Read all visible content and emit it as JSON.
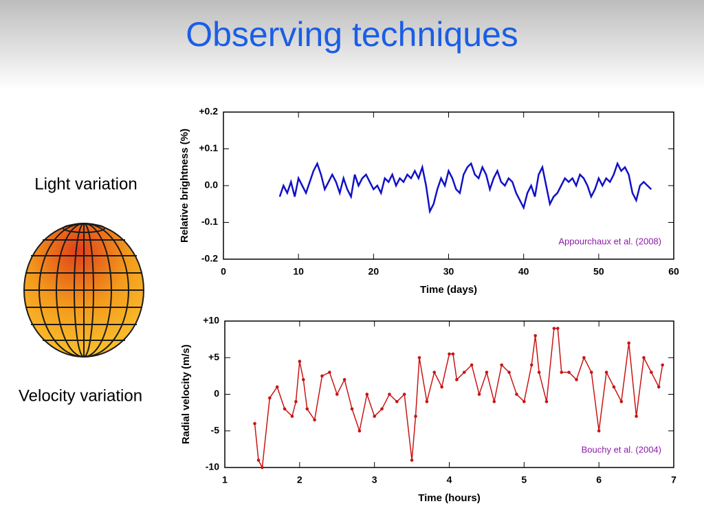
{
  "title": "Observing techniques",
  "labels": {
    "light": "Light variation",
    "velocity": "Velocity variation"
  },
  "chart_data": [
    {
      "type": "line",
      "xlabel": "Time (days)",
      "ylabel": "Relative brightness (%)",
      "annotation": "Appourchaux et al. (2008)",
      "color": "#1010c8",
      "markers": false,
      "xlim": [
        0,
        60
      ],
      "xticks": [
        0,
        10,
        20,
        30,
        40,
        50,
        60
      ],
      "ylim": [
        -0.2,
        0.2
      ],
      "yticks": [
        {
          "value": 0.2,
          "label": "+0.2"
        },
        {
          "value": 0.1,
          "label": "+0.1"
        },
        {
          "value": 0,
          "label": "0.0"
        },
        -0.1,
        -0.2
      ],
      "x": [
        7.5,
        8,
        8.5,
        9,
        9.5,
        10,
        10.5,
        11,
        11.5,
        12,
        12.5,
        13,
        13.5,
        14,
        14.5,
        15,
        15.5,
        16,
        16.5,
        17,
        17.5,
        18,
        18.5,
        19,
        19.5,
        20,
        20.5,
        21,
        21.5,
        22,
        22.5,
        23,
        23.5,
        24,
        24.5,
        25,
        25.5,
        26,
        26.5,
        27,
        27.5,
        28,
        28.5,
        29,
        29.5,
        30,
        30.5,
        31,
        31.5,
        32,
        32.5,
        33,
        33.5,
        34,
        34.5,
        35,
        35.5,
        36,
        36.5,
        37,
        37.5,
        38,
        38.5,
        39,
        39.5,
        40,
        40.5,
        41,
        41.5,
        42,
        42.5,
        43,
        43.5,
        44,
        44.5,
        45,
        45.5,
        46,
        46.5,
        47,
        47.5,
        48,
        48.5,
        49,
        49.5,
        50,
        50.5,
        51,
        51.5,
        52,
        52.5,
        53,
        53.5,
        54,
        54.5,
        55,
        55.5,
        56,
        56.5,
        57
      ],
      "values": [
        -0.03,
        0,
        -0.02,
        0.01,
        -0.03,
        0.02,
        0,
        -0.02,
        0.01,
        0.04,
        0.06,
        0.03,
        -0.01,
        0.01,
        0.03,
        0.01,
        -0.02,
        0.02,
        -0.01,
        -0.03,
        0.03,
        0,
        0.02,
        0.03,
        0.01,
        -0.01,
        0,
        -0.02,
        0.02,
        0.01,
        0.03,
        0,
        0.02,
        0.01,
        0.03,
        0.02,
        0.04,
        0.02,
        0.05,
        0,
        -0.07,
        -0.05,
        -0.01,
        0.02,
        0,
        0.04,
        0.02,
        -0.01,
        -0.02,
        0.03,
        0.05,
        0.06,
        0.03,
        0.02,
        0.05,
        0.03,
        -0.01,
        0.02,
        0.04,
        0.01,
        0,
        0.02,
        0.01,
        -0.02,
        -0.04,
        -0.06,
        -0.02,
        0,
        -0.03,
        0.03,
        0.05,
        0,
        -0.05,
        -0.03,
        -0.02,
        0,
        0.02,
        0.01,
        0.02,
        0,
        0.03,
        0.02,
        0,
        -0.03,
        -0.01,
        0.02,
        0,
        0.02,
        0.01,
        0.03,
        0.06,
        0.04,
        0.05,
        0.03,
        -0.02,
        -0.04,
        0,
        0.01,
        0,
        -0.01
      ]
    },
    {
      "type": "line",
      "xlabel": "Time (hours)",
      "ylabel": "Radial velocity (m/s)",
      "annotation": "Bouchy et al. (2004)",
      "color": "#c81414",
      "markers": true,
      "xlim": [
        1,
        7
      ],
      "xticks": [
        1,
        2,
        3,
        4,
        5,
        6,
        7
      ],
      "ylim": [
        -10,
        10
      ],
      "yticks": [
        {
          "value": 10,
          "label": "+10"
        },
        {
          "value": 5,
          "label": "+5"
        },
        0,
        -5,
        -10
      ],
      "x": [
        1.4,
        1.45,
        1.5,
        1.6,
        1.7,
        1.8,
        1.9,
        1.95,
        2.0,
        2.05,
        2.1,
        2.2,
        2.3,
        2.4,
        2.5,
        2.6,
        2.7,
        2.8,
        2.9,
        3.0,
        3.1,
        3.2,
        3.3,
        3.4,
        3.5,
        3.55,
        3.6,
        3.7,
        3.8,
        3.9,
        4.0,
        4.05,
        4.1,
        4.2,
        4.3,
        4.4,
        4.5,
        4.6,
        4.7,
        4.8,
        4.9,
        5.0,
        5.1,
        5.15,
        5.2,
        5.3,
        5.4,
        5.45,
        5.5,
        5.6,
        5.7,
        5.8,
        5.9,
        6.0,
        6.1,
        6.2,
        6.3,
        6.4,
        6.5,
        6.6,
        6.7,
        6.8,
        6.85
      ],
      "values": [
        -4,
        -9,
        -10,
        -0.5,
        1,
        -2,
        -3,
        -1,
        4.5,
        2,
        -2,
        -3.5,
        2.5,
        3,
        0,
        2,
        -2,
        -5,
        0,
        -3,
        -2,
        0,
        -1,
        0,
        -9,
        -3,
        5,
        -1,
        3,
        1,
        5.5,
        5.5,
        2,
        3,
        4,
        0,
        3,
        -1,
        4,
        3,
        0,
        -1,
        4,
        8,
        3,
        -1,
        9,
        9,
        3,
        3,
        2,
        5,
        3,
        -5,
        3,
        1,
        -1,
        7,
        -3,
        5,
        3,
        1,
        4
      ]
    }
  ]
}
